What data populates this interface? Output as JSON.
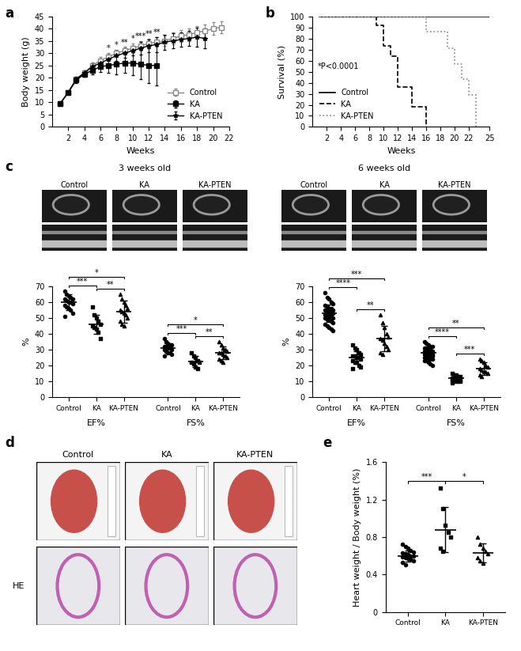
{
  "chart_data": [
    {
      "label": "a",
      "type": "line",
      "xlabel": "Weeks",
      "ylabel": "Body weight (g)",
      "xlim": [
        0,
        22
      ],
      "xticks": [
        2,
        4,
        6,
        8,
        10,
        12,
        14,
        16,
        18,
        20,
        22
      ],
      "ylim": [
        0,
        45
      ],
      "yticks": [
        0,
        5,
        10,
        15,
        20,
        25,
        30,
        35,
        40,
        45
      ],
      "legend": "lower right",
      "series": [
        {
          "name": "Control",
          "color": "#888888",
          "marker": "open_square",
          "x": [
            1,
            2,
            3,
            4,
            5,
            6,
            7,
            8,
            9,
            10,
            11,
            12,
            13,
            14,
            15,
            16,
            17,
            18,
            19,
            20,
            21
          ],
          "values": [
            9.5,
            14,
            19.5,
            22,
            25,
            27,
            28.5,
            30,
            31,
            32,
            33,
            34,
            34.5,
            35,
            36,
            37,
            37.5,
            38.5,
            39,
            40,
            40.5
          ],
          "errors": [
            0.5,
            0.7,
            1,
            1,
            1.2,
            1.5,
            1.5,
            1.5,
            1.5,
            2,
            2,
            2,
            2,
            2,
            2.5,
            2.5,
            2.5,
            2.5,
            2.5,
            2.5,
            2.5
          ]
        },
        {
          "name": "KA",
          "color": "#000000",
          "marker": "square",
          "x": [
            1,
            2,
            3,
            4,
            5,
            6,
            7,
            8,
            9,
            10,
            11,
            12,
            13
          ],
          "values": [
            9.5,
            14,
            19,
            21.5,
            23,
            24.5,
            25,
            25.5,
            26,
            26,
            25.5,
            25,
            25
          ],
          "errors": [
            0.5,
            0.7,
            1,
            1,
            1.5,
            2,
            3,
            4,
            4,
            5,
            6,
            7,
            8
          ]
        },
        {
          "name": "KA-PTEN",
          "color": "#000000",
          "marker": "star",
          "x": [
            1,
            2,
            3,
            4,
            5,
            6,
            7,
            8,
            9,
            10,
            11,
            12,
            13,
            14,
            15,
            16,
            17,
            18,
            19
          ],
          "values": [
            9.5,
            14,
            19.5,
            22,
            24.5,
            26,
            27.5,
            29,
            30,
            31,
            32,
            33,
            33.5,
            34.5,
            35,
            35.5,
            36,
            36.5,
            36
          ],
          "errors": [
            0.5,
            0.7,
            1,
            1,
            1.5,
            1.5,
            2,
            2,
            2,
            2,
            2.5,
            2.5,
            3,
            3,
            3,
            3,
            3,
            4,
            4
          ]
        }
      ],
      "annotations": [
        {
          "x": 7,
          "label": "*"
        },
        {
          "x": 8,
          "label": "*"
        },
        {
          "x": 9,
          "label": "**"
        },
        {
          "x": 10,
          "label": "*"
        },
        {
          "x": 11,
          "label": "***"
        },
        {
          "x": 12,
          "label": "**"
        },
        {
          "x": 13,
          "label": "**"
        }
      ]
    },
    {
      "label": "b",
      "type": "step",
      "xlabel": "Weeks",
      "ylabel": "Survival (%)",
      "xlim": [
        0,
        25
      ],
      "xticks": [
        2,
        4,
        6,
        8,
        10,
        12,
        14,
        16,
        18,
        20,
        22,
        25
      ],
      "ylim": [
        0,
        100
      ],
      "yticks": [
        0,
        10,
        20,
        30,
        40,
        50,
        60,
        70,
        80,
        90,
        100
      ],
      "legend": "lower left",
      "annotation": "*P<0.0001",
      "series": [
        {
          "name": "Control",
          "color": "#000000",
          "line_style": "solid",
          "x": [
            1,
            25
          ],
          "values": [
            100,
            100
          ]
        },
        {
          "name": "KA",
          "color": "#000000",
          "line_style": "dashed",
          "x": [
            1,
            9,
            10,
            11,
            12,
            14,
            16
          ],
          "values": [
            100,
            92,
            73,
            64,
            36,
            18,
            0
          ]
        },
        {
          "name": "KA-PTEN",
          "color": "#888888",
          "line_style": "dotted",
          "x": [
            1,
            16,
            19,
            20,
            21,
            22,
            23
          ],
          "values": [
            100,
            86,
            71,
            57,
            43,
            29,
            0
          ]
        }
      ]
    },
    {
      "type": "dot",
      "ylabel": "%",
      "ylim": [
        0,
        70
      ],
      "yticks": [
        0,
        10,
        20,
        30,
        40,
        50,
        60,
        70
      ],
      "categories": [
        "Control",
        "KA",
        "KA-PTEN"
      ],
      "series": [
        {
          "name": "EF%",
          "values": [
            [
              67,
              65,
              64,
              63,
              62,
              62,
              61,
              60,
              60,
              59,
              58,
              57,
              56,
              55,
              53,
              51
            ],
            [
              57,
              52,
              50,
              48,
              46,
              45,
              44,
              43,
              41,
              37
            ],
            [
              65,
              62,
              60,
              58,
              56,
              55,
              54,
              53,
              52,
              50,
              48,
              46,
              45
            ]
          ],
          "mean": [
            60,
            46,
            54
          ],
          "sd": [
            5,
            6,
            7
          ],
          "comparisons": [
            {
              "pair": [
                0,
                1
              ],
              "label": "***"
            },
            {
              "pair": [
                1,
                2
              ],
              "label": "**"
            },
            {
              "pair": [
                0,
                2
              ],
              "label": "*"
            }
          ]
        },
        {
          "name": "FS%",
          "values": [
            [
              37,
              35,
              34,
              33,
              33,
              32,
              32,
              31,
              31,
              30,
              30,
              29,
              28,
              28,
              27,
              26
            ],
            [
              28,
              26,
              25,
              23,
              22,
              22,
              21,
              19,
              18
            ],
            [
              35,
              33,
              31,
              30,
              29,
              28,
              28,
              27,
              26,
              25,
              24,
              23,
              22
            ]
          ],
          "mean": [
            31,
            22.5,
            28
          ],
          "sd": [
            3,
            3.5,
            4
          ],
          "comparisons": [
            {
              "pair": [
                0,
                1
              ],
              "label": "***"
            },
            {
              "pair": [
                1,
                2
              ],
              "label": "**"
            },
            {
              "pair": [
                0,
                2
              ],
              "label": "*"
            }
          ]
        }
      ]
    },
    {
      "type": "dot",
      "ylabel": "%",
      "ylim": [
        0,
        70
      ],
      "yticks": [
        0,
        10,
        20,
        30,
        40,
        50,
        60,
        70
      ],
      "categories": [
        "Control",
        "KA",
        "KA-PTEN"
      ],
      "series": [
        {
          "name": "EF%",
          "values": [
            [
              66,
              63,
              62,
              60,
              59,
              58,
              57,
              56,
              56,
              55,
              55,
              54,
              54,
              53,
              53,
              52,
              52,
              51,
              51,
              50,
              50,
              49,
              49,
              48,
              47,
              46,
              45,
              44,
              43,
              42
            ],
            [
              33,
              31,
              30,
              28,
              27,
              26,
              26,
              25,
              25,
              24,
              23,
              22,
              22,
              20,
              19,
              18
            ],
            [
              52,
              47,
              44,
              40,
              38,
              37,
              36,
              34,
              32,
              30,
              28,
              27
            ]
          ],
          "mean": [
            53,
            25,
            37
          ],
          "sd": [
            5.5,
            4,
            8
          ],
          "comparisons": [
            {
              "pair": [
                0,
                1
              ],
              "label": "****"
            },
            {
              "pair": [
                1,
                2
              ],
              "label": "**"
            },
            {
              "pair": [
                0,
                2
              ],
              "label": "***"
            }
          ]
        },
        {
          "name": "FS%",
          "values": [
            [
              35,
              34,
              33,
              32,
              32,
              31,
              31,
              30,
              30,
              29,
              29,
              28,
              28,
              28,
              27,
              27,
              27,
              26,
              26,
              26,
              25,
              25,
              25,
              24,
              24,
              23,
              23,
              22,
              21,
              20
            ],
            [
              15,
              14,
              14,
              13,
              13,
              12,
              12,
              12,
              12,
              11,
              11,
              11,
              10,
              10,
              10,
              9
            ],
            [
              24,
              23,
              22,
              20,
              19,
              18,
              17,
              16,
              16,
              15,
              14,
              13
            ]
          ],
          "mean": [
            28,
            12,
            18
          ],
          "sd": [
            4,
            1.7,
            4
          ],
          "comparisons": [
            {
              "pair": [
                0,
                1
              ],
              "label": "****"
            },
            {
              "pair": [
                1,
                2
              ],
              "label": "***"
            },
            {
              "pair": [
                0,
                2
              ],
              "label": "**"
            }
          ]
        }
      ]
    },
    {
      "label": "e",
      "type": "dot",
      "ylabel": "Heart weight / Body weight (%)",
      "ylim": [
        0,
        1.6
      ],
      "yticks": [
        0,
        0.4,
        0.8,
        1.2,
        1.6
      ],
      "categories": [
        "Control",
        "KA",
        "KA-PTEN"
      ],
      "series": [
        {
          "values": [
            [
              0.72,
              0.7,
              0.68,
              0.66,
              0.64,
              0.63,
              0.62,
              0.61,
              0.6,
              0.6,
              0.59,
              0.58,
              0.57,
              0.56,
              0.55,
              0.53,
              0.5
            ],
            [
              1.32,
              1.1,
              0.93,
              0.85,
              0.8,
              0.68,
              0.65
            ],
            [
              0.8,
              0.72,
              0.68,
              0.65,
              0.62,
              0.58,
              0.55,
              0.52
            ]
          ],
          "mean": [
            0.6,
            0.88,
            0.63
          ],
          "sd": [
            0.06,
            0.24,
            0.1
          ],
          "comparisons": [
            {
              "pair": [
                0,
                1
              ],
              "label": "***"
            },
            {
              "pair": [
                1,
                2
              ],
              "label": "*"
            }
          ]
        }
      ]
    }
  ],
  "images": [
    {
      "label": "c",
      "groups": [
        {
          "title": "3 weeks old",
          "items": [
            "Control",
            "KA",
            "KA-PTEN"
          ]
        },
        {
          "title": "6 weeks old",
          "items": [
            "Control",
            "KA",
            "KA-PTEN"
          ]
        }
      ]
    },
    {
      "label": "d",
      "items": [
        "Control",
        "KA",
        "KA-PTEN"
      ],
      "row_label": "HE"
    }
  ]
}
